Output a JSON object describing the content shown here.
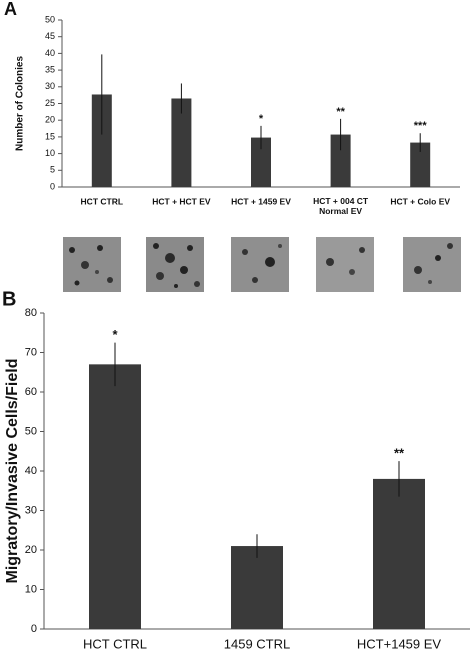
{
  "chart_data": [
    {
      "type": "bar",
      "panel": "A",
      "ylabel": "Number of Colonies",
      "categories": [
        "HCT CTRL",
        "HCT + HCT EV",
        "HCT + 1459 EV",
        "HCT + 004 CT\nNormal EV",
        "HCT + Colo EV"
      ],
      "values": [
        27.7,
        26.5,
        14.8,
        15.7,
        13.3
      ],
      "errors": [
        12,
        4.5,
        3.5,
        4.7,
        2.8
      ],
      "annotations": [
        null,
        null,
        "*",
        "**",
        "***"
      ],
      "color": "#3a3a3a",
      "ylim": [
        0,
        50
      ],
      "yticks": [
        0,
        5,
        10,
        15,
        20,
        25,
        30,
        35,
        40,
        45,
        50
      ],
      "grid": false
    },
    {
      "type": "bar",
      "panel": "B",
      "ylabel": "Migratory/Invasive Cells/Field",
      "categories": [
        "HCT CTRL",
        "1459 CTRL",
        "HCT+1459 EV"
      ],
      "values": [
        67,
        21,
        38
      ],
      "errors": [
        5.5,
        3,
        4.5
      ],
      "annotations": [
        "*",
        null,
        "**"
      ],
      "color": "#3a3a3a",
      "ylim": [
        0,
        80
      ],
      "yticks": [
        0,
        10,
        20,
        30,
        40,
        50,
        60,
        70,
        80
      ],
      "grid": false
    }
  ]
}
